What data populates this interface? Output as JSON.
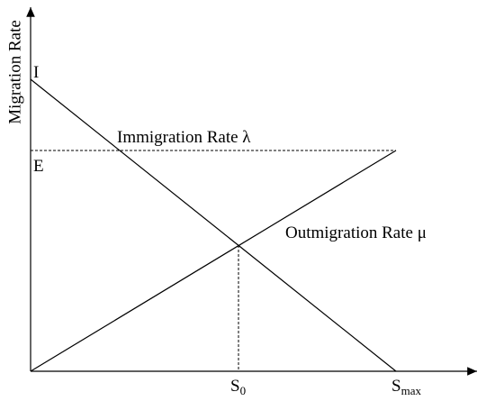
{
  "y_axis_label": "Migration Rate",
  "labels": {
    "i": "I",
    "e": "E",
    "immigration": "Immigration Rate λ",
    "outmigration": "Outmigration Rate μ"
  },
  "x_labels": {
    "s0": {
      "base": "S",
      "sub": "0"
    },
    "smax": {
      "base": "S",
      "sub": "max"
    }
  }
}
